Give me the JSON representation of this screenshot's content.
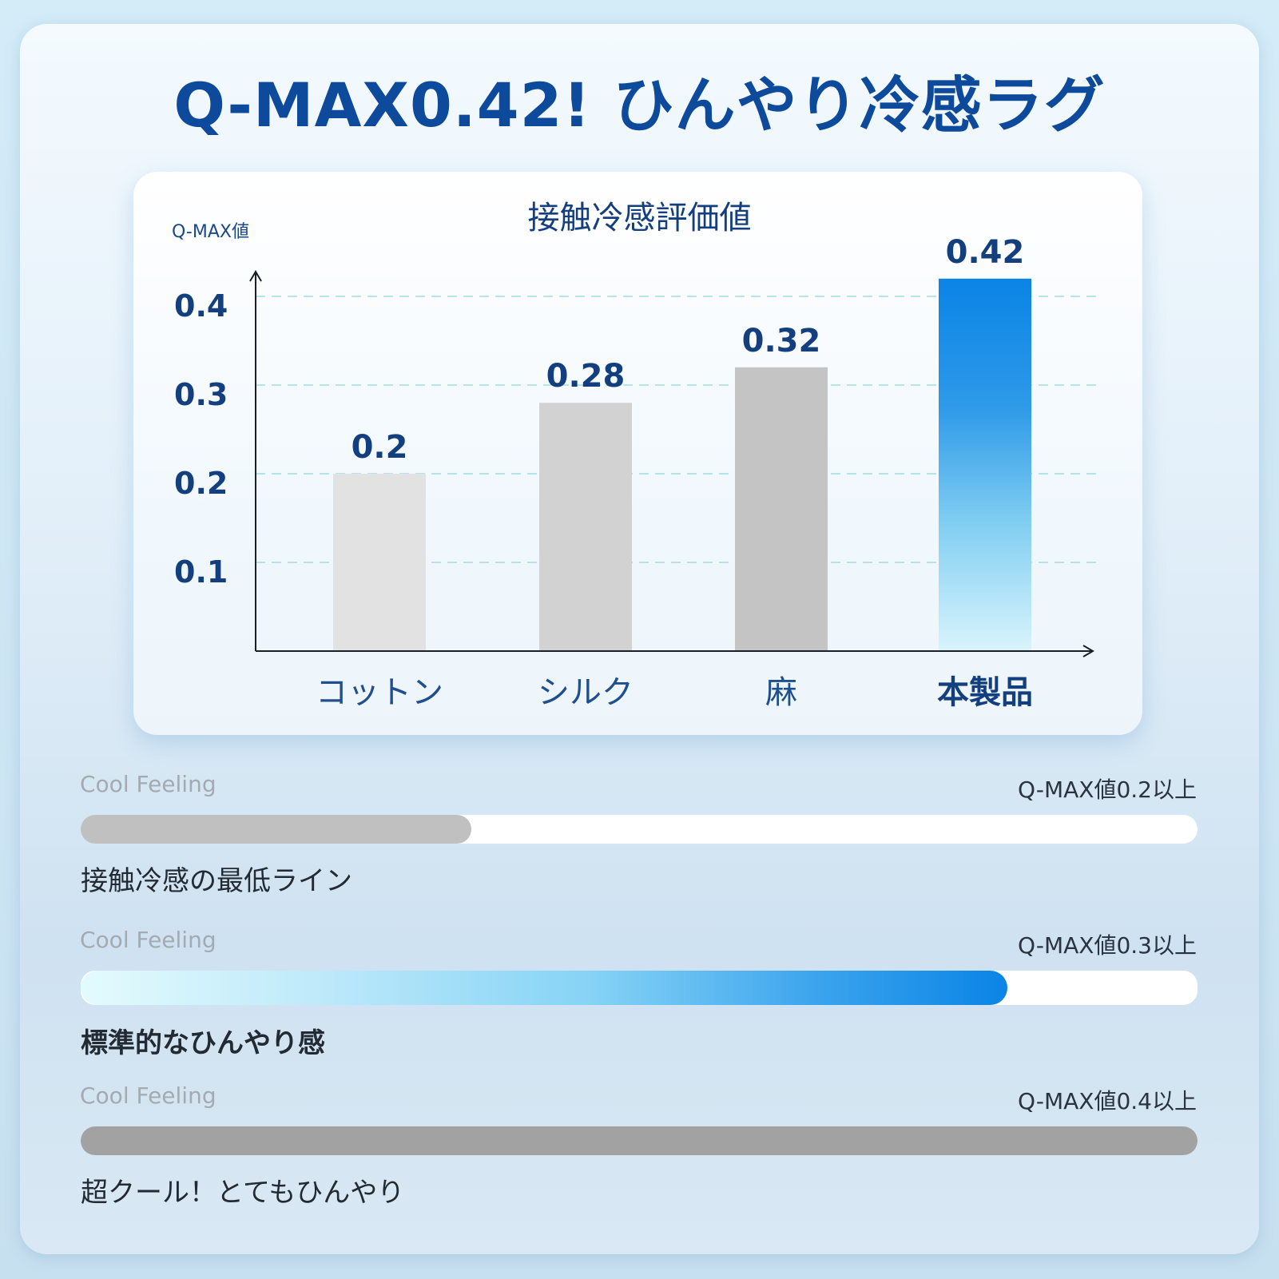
{
  "title": "Q-MAX0.42! ひんやり冷感ラグ",
  "chart_data": {
    "type": "bar",
    "title": "接触冷感評価値",
    "ylabel": "Q-MAX値",
    "categories": [
      "コットン",
      "シルク",
      "麻",
      "本製品"
    ],
    "values": [
      0.2,
      0.28,
      0.32,
      0.42
    ],
    "value_labels": [
      "0.2",
      "0.28",
      "0.32",
      "0.42"
    ],
    "y_ticks": [
      "0.1",
      "0.2",
      "0.3",
      "0.4"
    ],
    "ylim": [
      0,
      0.43
    ],
    "grid": "dashed horizontal",
    "colors": [
      "#e2e2e2",
      "#d2d2d2",
      "#c4c4c4",
      "#0a84e6"
    ],
    "highlight_category": "本製品"
  },
  "levels": [
    {
      "caption": "Cool Feeling",
      "threshold": "Q-MAX値0.2以上",
      "fill": 0.35,
      "description": "接触冷感の最低ライン",
      "fill_color": "#c0c0c0"
    },
    {
      "caption": "Cool Feeling",
      "threshold": "Q-MAX値0.3以上",
      "fill": 0.83,
      "description": "標準的なひんやり感",
      "fill_color": "#0a84e6"
    },
    {
      "caption": "Cool Feeling",
      "threshold": "Q-MAX値0.4以上",
      "fill": 1.0,
      "description": "超クール！とてもひんやり",
      "fill_color": "#a2a2a2"
    }
  ]
}
